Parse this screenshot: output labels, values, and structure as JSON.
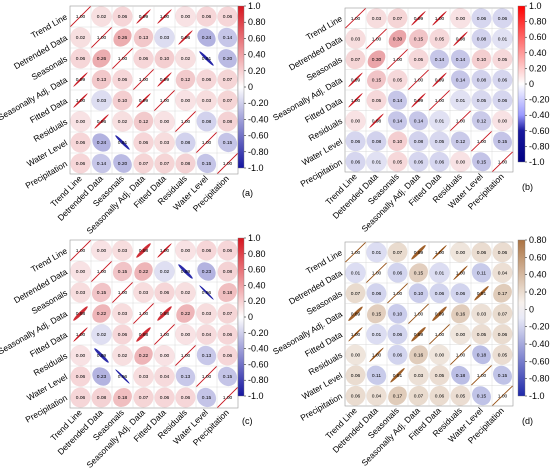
{
  "chart_data": [
    {
      "type": "heatmap",
      "panel_label": "(a)",
      "variables": [
        "Trend Line",
        "Detrended Data",
        "Seasonals",
        "Seasonally Adj. Data",
        "Fitted Data",
        "Residuals",
        "Water Level",
        "Precipitation"
      ],
      "matrix": [
        [
          1.0,
          0.02,
          0.06,
          0.99,
          1.0,
          0.0,
          0.06,
          0.06
        ],
        [
          0.02,
          1.0,
          0.26,
          0.13,
          0.03,
          0.96,
          0.24,
          0.14
        ],
        [
          0.06,
          0.26,
          1.0,
          0.06,
          0.1,
          0.02,
          0.91,
          0.2
        ],
        [
          0.99,
          0.13,
          0.06,
          1.0,
          0.99,
          0.12,
          0.06,
          0.07
        ],
        [
          1.0,
          0.03,
          0.1,
          0.99,
          1.0,
          0.0,
          0.03,
          0.07
        ],
        [
          0.0,
          0.96,
          0.02,
          0.12,
          0.0,
          1.0,
          0.08,
          0.08
        ],
        [
          0.06,
          0.24,
          0.91,
          0.06,
          0.03,
          0.08,
          1.0,
          0.15
        ],
        [
          0.06,
          0.14,
          0.2,
          0.07,
          0.07,
          0.08,
          0.15,
          1.0
        ]
      ],
      "colorbar_ticks": [
        "1.0",
        "0.80",
        "0.60",
        "0.40",
        "0.20",
        "0",
        "-0.20",
        "-0.40",
        "-0.60",
        "-0.80",
        "-1.0"
      ]
    },
    {
      "type": "heatmap",
      "panel_label": "(b)",
      "variables": [
        "Trend Line",
        "Detrended Data",
        "Seasonals",
        "Seasonally Adj. Data",
        "Fitted Data",
        "Residuals",
        "Water Level",
        "Precipitation"
      ],
      "matrix": [
        [
          1.0,
          0.03,
          0.07,
          0.99,
          1.0,
          0.0,
          0.06,
          0.06
        ],
        [
          0.03,
          1.0,
          0.3,
          0.15,
          0.05,
          0.98,
          0.08,
          0.01
        ],
        [
          0.07,
          0.3,
          1.0,
          0.05,
          0.14,
          0.14,
          0.1,
          0.05
        ],
        [
          0.99,
          0.15,
          0.05,
          1.0,
          0.99,
          0.14,
          0.08,
          0.06
        ],
        [
          1.0,
          0.05,
          0.14,
          0.99,
          1.0,
          0.01,
          0.05,
          0.06
        ],
        [
          0.0,
          0.98,
          0.14,
          0.14,
          0.01,
          1.0,
          0.12,
          0.0
        ],
        [
          0.06,
          0.08,
          0.1,
          0.08,
          0.05,
          0.12,
          1.0,
          0.15
        ],
        [
          0.06,
          0.01,
          0.05,
          0.06,
          0.06,
          0.0,
          0.15,
          1.0
        ]
      ],
      "colorbar_ticks": [
        "1.0",
        "0.80",
        "0.60",
        "0.40",
        "0.20",
        "0",
        "-0.20",
        "-0.40",
        "-0.60",
        "-0.80",
        "-1.0"
      ]
    },
    {
      "type": "heatmap",
      "panel_label": "(c)",
      "variables": [
        "Trend Line",
        "Detrended Data",
        "Seasonals",
        "Seasonally Adj. Data",
        "Fitted Data",
        "Residuals",
        "Water Level",
        "Precipitation"
      ],
      "matrix": [
        [
          1.0,
          0.0,
          0.03,
          0.88,
          1.0,
          0.0,
          0.06,
          0.06
        ],
        [
          0.0,
          1.0,
          0.15,
          0.22,
          0.02,
          0.89,
          0.23,
          0.08
        ],
        [
          0.03,
          0.15,
          1.0,
          0.03,
          0.06,
          0.02,
          0.96,
          0.18
        ],
        [
          0.88,
          0.22,
          0.03,
          1.0,
          0.88,
          0.22,
          0.03,
          0.07
        ],
        [
          1.0,
          0.02,
          0.06,
          0.88,
          1.0,
          0.0,
          0.04,
          0.06
        ],
        [
          0.0,
          0.89,
          0.02,
          0.22,
          0.0,
          1.0,
          0.13,
          0.06
        ],
        [
          0.06,
          0.23,
          0.96,
          0.03,
          0.04,
          0.13,
          1.0,
          0.15
        ],
        [
          0.06,
          0.08,
          0.18,
          0.07,
          0.06,
          0.06,
          0.15,
          1.0
        ]
      ],
      "colorbar_ticks": [
        "1.0",
        "0.80",
        "0.60",
        "0.40",
        "0.20",
        "0",
        "-0.20",
        "-0.40",
        "-0.60",
        "-0.80",
        "-1.0"
      ]
    },
    {
      "type": "heatmap",
      "panel_label": "(d)",
      "variables": [
        "Trend Line",
        "Detrended Data",
        "Seasonals",
        "Seasonally Adj. Data",
        "Fitted Data",
        "Residuals",
        "Water Level",
        "Precipitation"
      ],
      "matrix": [
        [
          1.0,
          0.01,
          0.07,
          0.89,
          1.0,
          0.0,
          0.06,
          0.06
        ],
        [
          0.01,
          1.0,
          0.06,
          0.15,
          0.01,
          1.0,
          0.11,
          0.04
        ],
        [
          0.07,
          0.06,
          1.0,
          0.1,
          0.06,
          0.06,
          0.91,
          0.17
        ],
        [
          0.89,
          0.15,
          0.1,
          1.0,
          0.89,
          0.16,
          0.03,
          0.07
        ],
        [
          1.0,
          0.01,
          0.06,
          0.89,
          1.0,
          0.0,
          0.05,
          0.06
        ],
        [
          0.0,
          1.0,
          0.06,
          0.16,
          0.0,
          1.0,
          0.18,
          0.05
        ],
        [
          0.06,
          0.11,
          0.91,
          0.03,
          0.05,
          0.18,
          1.0,
          0.15
        ],
        [
          0.06,
          0.04,
          0.17,
          0.07,
          0.06,
          0.05,
          0.15,
          1.0
        ]
      ],
      "colorbar_ticks": [
        "0.80",
        "0.60",
        "0.40",
        "0.20",
        "0",
        "-0.20",
        "-0.40",
        "-0.60",
        "-0.80",
        "-1.0"
      ]
    }
  ]
}
